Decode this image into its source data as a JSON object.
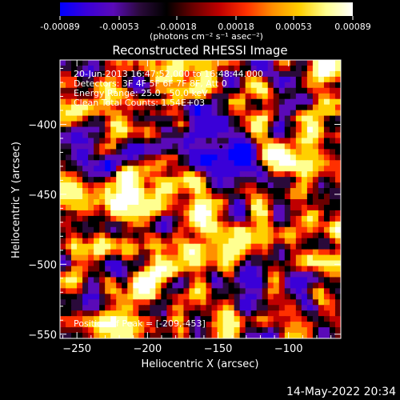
{
  "footer_timestamp": "14-May-2022 20:34",
  "colorbar": {
    "min": -0.00089,
    "max": 0.00089,
    "ticks": [
      "-0.00089",
      "-0.00053",
      "-0.00018",
      "0.00018",
      "0.00053",
      "0.00089"
    ],
    "stops": [
      "#0000ff",
      "#3a00d8",
      "#5a0ab8",
      "#2a0a3a",
      "#000000",
      "#6a0000",
      "#c00000",
      "#ff3000",
      "#ff9000",
      "#ffd000",
      "#ffff90",
      "#ffffff"
    ]
  },
  "chart_data": {
    "type": "heatmap",
    "title": "Reconstructed RHESSI Image",
    "units_label": "(photons cm⁻² s⁻¹ asec⁻²)",
    "xlabel": "Heliocentric X (arcsec)",
    "ylabel": "Heliocentric Y (arcsec)",
    "xlim": [
      -262,
      -63
    ],
    "ylim": [
      -553,
      -354
    ],
    "x_ticks": [
      -250,
      -200,
      -150,
      -100
    ],
    "y_ticks": [
      -400,
      -450,
      -500,
      -550
    ],
    "annotations": {
      "time_range": "20-Jun-2013 16:47:52.000 to 16:48:44.000",
      "detectors": "Detectors: 3F 4F 5F 6F 7F 8F, Att 0",
      "energy": "Energy Range: 25.0 - 50.0 keV",
      "clean": "Clean    Total Counts: 1.54E+03",
      "peak": "Position of Peak = [-209,-453]"
    },
    "peak_position": [
      -209,
      -453
    ],
    "min_marker": [
      -148,
      -416
    ],
    "grid_size": 50,
    "seed": 7
  }
}
